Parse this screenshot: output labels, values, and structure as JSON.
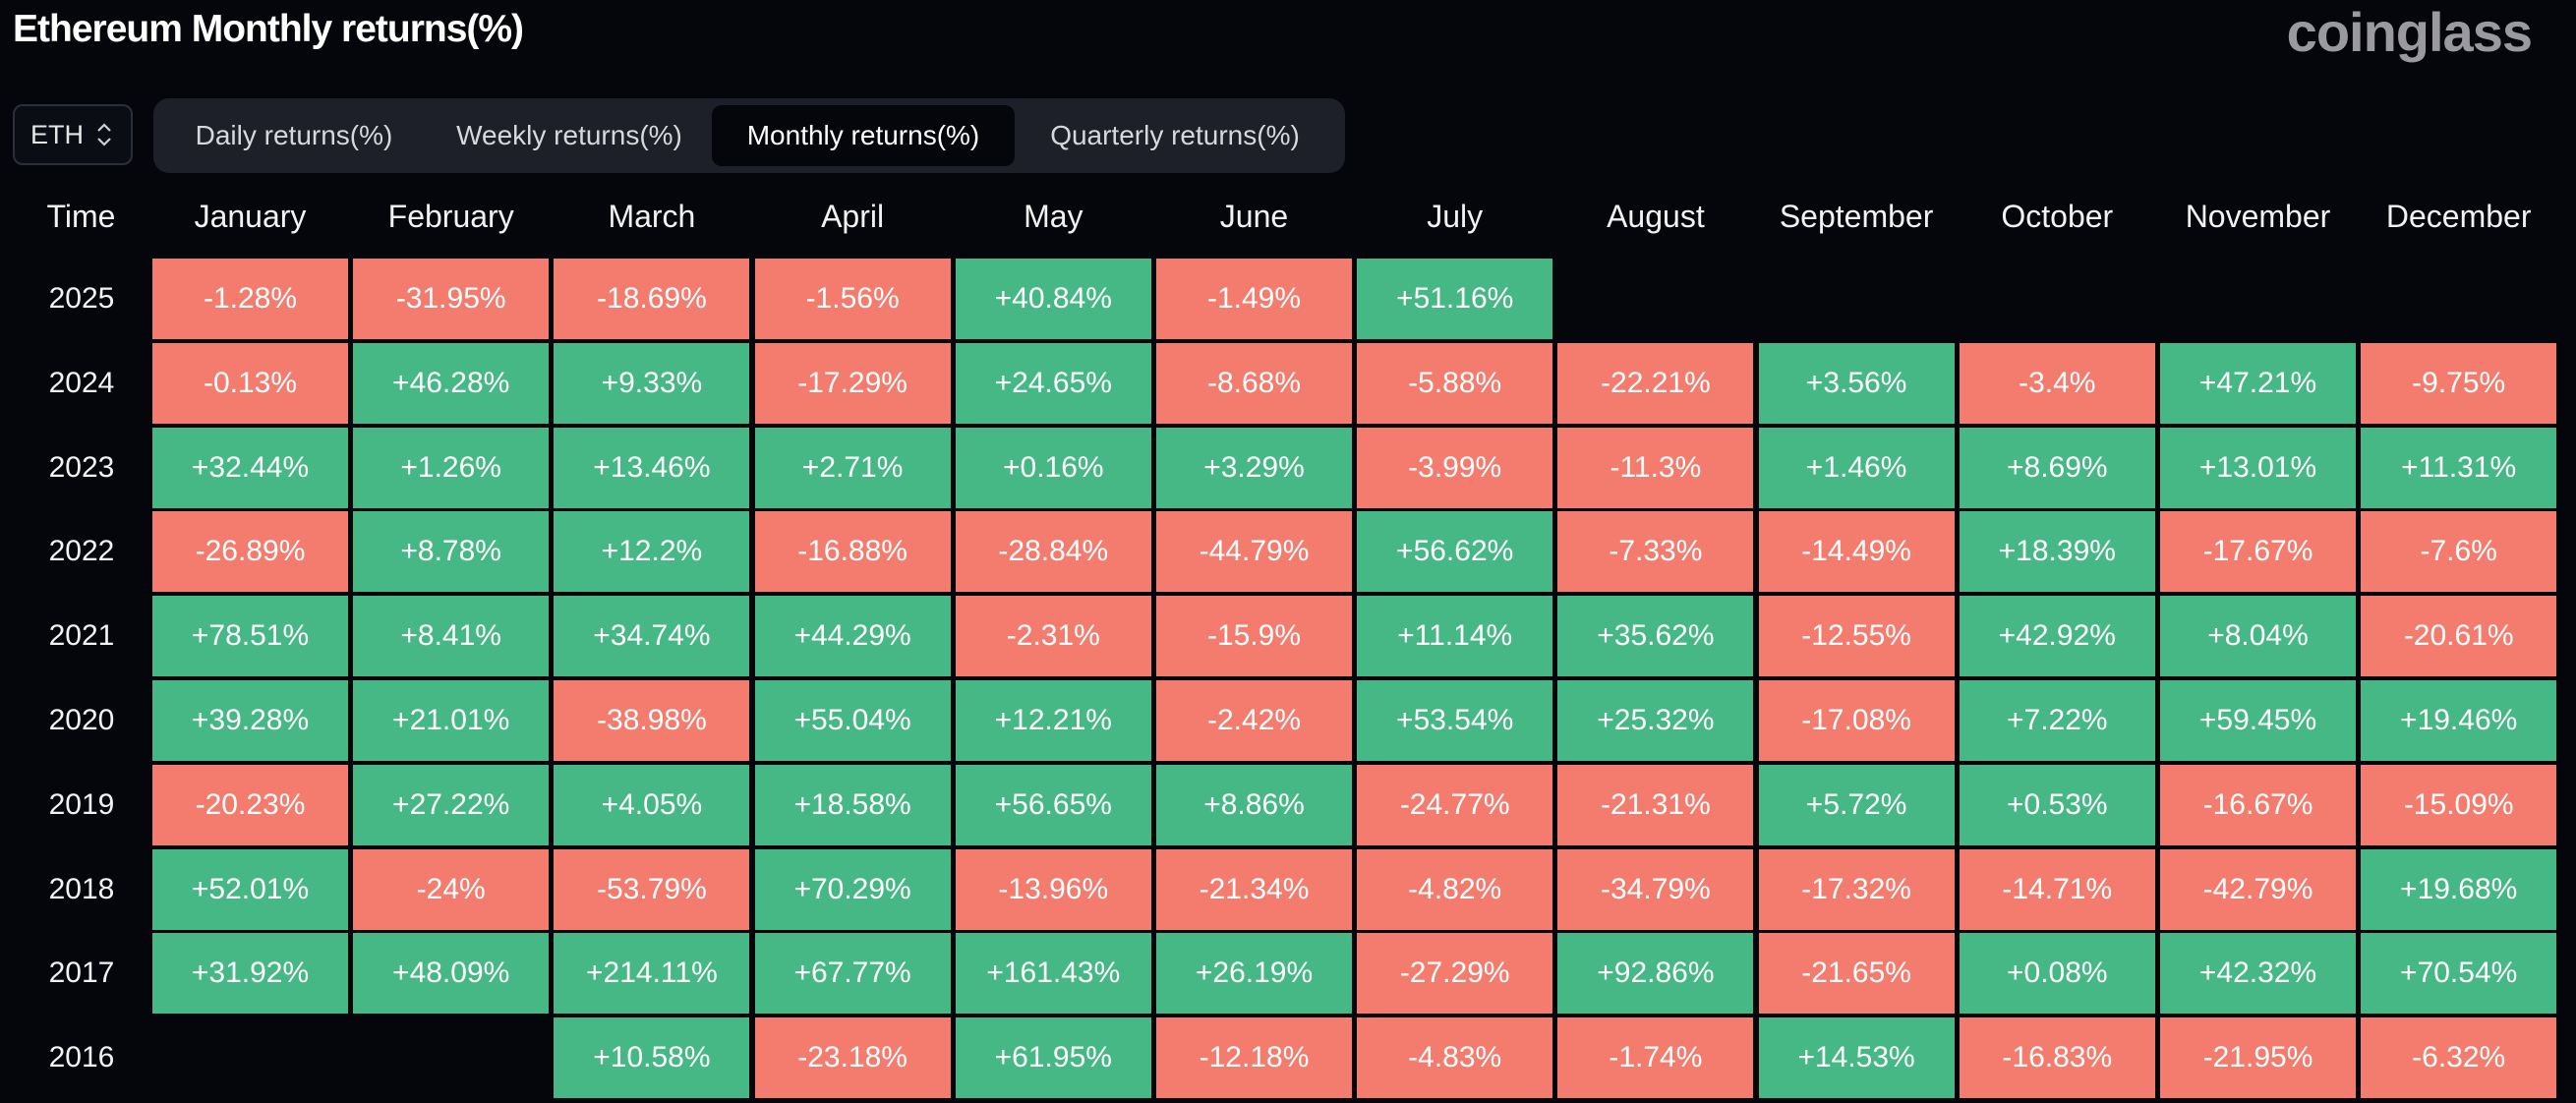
{
  "header": {
    "title": "Ethereum Monthly returns(%)",
    "brand": "coinglass"
  },
  "coin_selector": {
    "value": "ETH",
    "icon": "chevron-updown-icon"
  },
  "tabs": [
    {
      "label": "Daily returns(%)",
      "active": false
    },
    {
      "label": "Weekly returns(%)",
      "active": false
    },
    {
      "label": "Monthly returns(%)",
      "active": true
    },
    {
      "label": "Quarterly returns(%)",
      "active": false
    }
  ],
  "colors": {
    "positive": "#45b886",
    "negative": "#f47c6e",
    "background": "#05060b"
  },
  "chart_data": {
    "type": "heatmap",
    "title": "Ethereum Monthly returns(%)",
    "row_header": "Time",
    "columns": [
      "January",
      "February",
      "March",
      "April",
      "May",
      "June",
      "July",
      "August",
      "September",
      "October",
      "November",
      "December"
    ],
    "rows": [
      {
        "year": "2025",
        "values": [
          "-1.28%",
          "-31.95%",
          "-18.69%",
          "-1.56%",
          "+40.84%",
          "-1.49%",
          "+51.16%",
          null,
          null,
          null,
          null,
          null
        ]
      },
      {
        "year": "2024",
        "values": [
          "-0.13%",
          "+46.28%",
          "+9.33%",
          "-17.29%",
          "+24.65%",
          "-8.68%",
          "-5.88%",
          "-22.21%",
          "+3.56%",
          "-3.4%",
          "+47.21%",
          "-9.75%"
        ]
      },
      {
        "year": "2023",
        "values": [
          "+32.44%",
          "+1.26%",
          "+13.46%",
          "+2.71%",
          "+0.16%",
          "+3.29%",
          "-3.99%",
          "-11.3%",
          "+1.46%",
          "+8.69%",
          "+13.01%",
          "+11.31%"
        ]
      },
      {
        "year": "2022",
        "values": [
          "-26.89%",
          "+8.78%",
          "+12.2%",
          "-16.88%",
          "-28.84%",
          "-44.79%",
          "+56.62%",
          "-7.33%",
          "-14.49%",
          "+18.39%",
          "-17.67%",
          "-7.6%"
        ]
      },
      {
        "year": "2021",
        "values": [
          "+78.51%",
          "+8.41%",
          "+34.74%",
          "+44.29%",
          "-2.31%",
          "-15.9%",
          "+11.14%",
          "+35.62%",
          "-12.55%",
          "+42.92%",
          "+8.04%",
          "-20.61%"
        ]
      },
      {
        "year": "2020",
        "values": [
          "+39.28%",
          "+21.01%",
          "-38.98%",
          "+55.04%",
          "+12.21%",
          "-2.42%",
          "+53.54%",
          "+25.32%",
          "-17.08%",
          "+7.22%",
          "+59.45%",
          "+19.46%"
        ]
      },
      {
        "year": "2019",
        "values": [
          "-20.23%",
          "+27.22%",
          "+4.05%",
          "+18.58%",
          "+56.65%",
          "+8.86%",
          "-24.77%",
          "-21.31%",
          "+5.72%",
          "+0.53%",
          "-16.67%",
          "-15.09%"
        ]
      },
      {
        "year": "2018",
        "values": [
          "+52.01%",
          "-24%",
          "-53.79%",
          "+70.29%",
          "-13.96%",
          "-21.34%",
          "-4.82%",
          "-34.79%",
          "-17.32%",
          "-14.71%",
          "-42.79%",
          "+19.68%"
        ]
      },
      {
        "year": "2017",
        "values": [
          "+31.92%",
          "+48.09%",
          "+214.11%",
          "+67.77%",
          "+161.43%",
          "+26.19%",
          "-27.29%",
          "+92.86%",
          "-21.65%",
          "+0.08%",
          "+42.32%",
          "+70.54%"
        ]
      },
      {
        "year": "2016",
        "values": [
          null,
          null,
          "+10.58%",
          "-23.18%",
          "+61.95%",
          "-12.18%",
          "-4.83%",
          "-1.74%",
          "+14.53%",
          "-16.83%",
          "-21.95%",
          "-6.32%"
        ]
      }
    ]
  }
}
